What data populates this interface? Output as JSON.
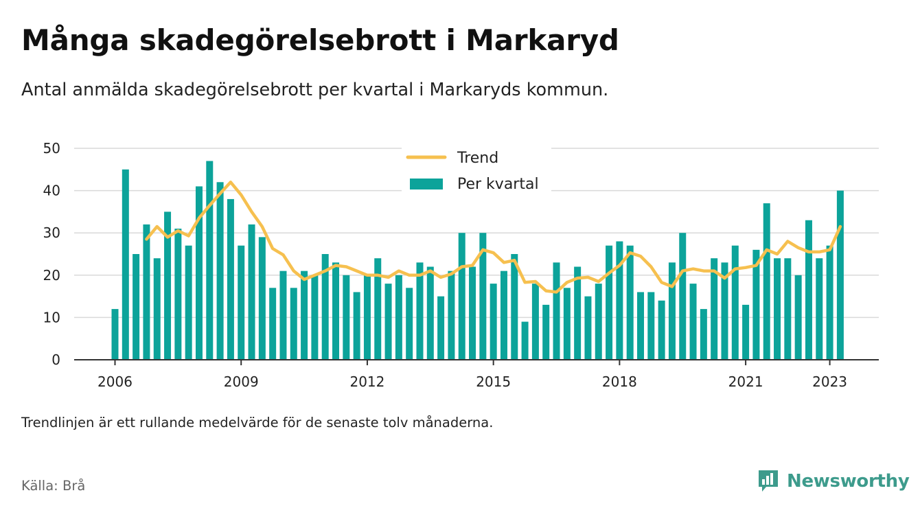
{
  "header": {
    "title": "Många skadegörelsebrott i Markaryd",
    "subtitle": "Antal anmälda skadegörelsebrott per kvartal i Markaryds kommun."
  },
  "footer": {
    "note": "Trendlinjen är ett rullande medelvärde för de senaste tolv månaderna.",
    "source": "Källa: Brå",
    "brand": "Newsworthy"
  },
  "colors": {
    "bar": "#0ca39a",
    "trend": "#f6c04f",
    "grid": "#d9d9d9",
    "axis": "#333333",
    "brand": "#3d9b8c"
  },
  "chart_data": {
    "type": "bar",
    "x_start": "2006 Q1",
    "frequency": "quarterly",
    "ylim": [
      0,
      50
    ],
    "yticks": [
      0,
      10,
      20,
      30,
      40,
      50
    ],
    "xticks": [
      "2006",
      "2009",
      "2012",
      "2015",
      "2018",
      "2021",
      "2023"
    ],
    "legend": {
      "placement": "top-center"
    },
    "series": [
      {
        "name": "Per kvartal",
        "type": "bar",
        "values": [
          12,
          45,
          25,
          32,
          24,
          35,
          31,
          27,
          41,
          47,
          42,
          38,
          27,
          32,
          29,
          17,
          21,
          17,
          21,
          20,
          25,
          23,
          20,
          16,
          20,
          24,
          18,
          20,
          17,
          23,
          22,
          15,
          21,
          30,
          22,
          30,
          18,
          21,
          25,
          9,
          18,
          13,
          23,
          17,
          22,
          15,
          18,
          27,
          28,
          27,
          16,
          16,
          14,
          23,
          30,
          18,
          12,
          24,
          23,
          27,
          13,
          26,
          37,
          24,
          24,
          20,
          33,
          24,
          27,
          40
        ]
      },
      {
        "name": "Trend",
        "type": "line",
        "values": [
          null,
          null,
          null,
          28.5,
          31.5,
          29,
          30.5,
          29.3,
          33.5,
          36.5,
          39.3,
          42,
          39,
          35,
          31.5,
          26.3,
          24.8,
          21,
          19,
          20,
          21,
          22.3,
          22,
          21,
          20,
          20,
          19.5,
          21,
          20,
          20,
          21,
          19.5,
          20.3,
          22,
          22.3,
          26,
          25.3,
          23,
          23.5,
          18.3,
          18.5,
          16.3,
          16,
          18.3,
          19.3,
          19.5,
          18.5,
          20.5,
          22.3,
          25.3,
          24.5,
          22,
          18.3,
          17.3,
          21,
          21.5,
          21,
          21,
          19.3,
          21.5,
          21.8,
          22.3,
          26,
          25,
          28,
          26.5,
          25.5,
          25.5,
          26,
          31.5
        ]
      }
    ]
  }
}
